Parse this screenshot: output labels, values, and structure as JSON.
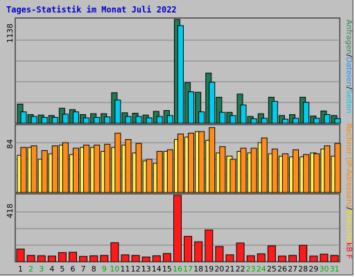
{
  "chart_data": {
    "title": "Tages-Statistik im Monat Juli 2022",
    "type": "bar",
    "categories": [
      "1",
      "2",
      "3",
      "4",
      "5",
      "6",
      "7",
      "8",
      "9",
      "10",
      "11",
      "12",
      "13",
      "14",
      "15",
      "16",
      "17",
      "18",
      "19",
      "20",
      "21",
      "22",
      "23",
      "24",
      "25",
      "26",
      "27",
      "28",
      "29",
      "30",
      "31"
    ],
    "weekend_days": [
      "2",
      "3",
      "9",
      "10",
      "16",
      "17",
      "23",
      "24",
      "30",
      "31"
    ],
    "panels": [
      {
        "ymax_label": "1138",
        "ylim": [
          0,
          1138
        ],
        "right_label": [
          {
            "text": "Anfragen",
            "color": "#2e8b57"
          },
          {
            "text": "/",
            "color": "#000000"
          },
          {
            "text": "Dateien",
            "color": "#1e90ff"
          },
          {
            "text": "/",
            "color": "#000000"
          },
          {
            "text": "Seiten",
            "color": "#00bfff"
          }
        ],
        "series": [
          {
            "name": "Anfragen",
            "color": "#1f7a56",
            "values": [
              210,
              95,
              90,
              85,
              165,
              150,
              95,
              105,
              105,
              335,
              115,
              110,
              90,
              130,
              140,
              1138,
              445,
              340,
              550,
              285,
              120,
              320,
              75,
              105,
              285,
              85,
              95,
              285,
              80,
              135,
              85
            ]
          },
          {
            "name": "Dateien",
            "color": "#00ccee",
            "values": [
              125,
              75,
              65,
              65,
              100,
              125,
              60,
              65,
              70,
              255,
              75,
              75,
              60,
              75,
              85,
              1070,
              345,
              125,
              450,
              120,
              85,
              200,
              50,
              55,
              240,
              45,
              55,
              230,
              55,
              95,
              50
            ]
          }
        ]
      },
      {
        "ymax_label": "84",
        "ylim": [
          0,
          84
        ],
        "right_label": [
          {
            "text": "Rechner (IP-Adressen)",
            "color": "#ff8800"
          },
          {
            "text": "/",
            "color": "#000000"
          },
          {
            "text": "Besuche",
            "color": "#ffdd00"
          }
        ],
        "series": [
          {
            "name": "Besuche",
            "color": "#ffee55",
            "values": [
              47,
              57,
              42,
              49,
              60,
              48,
              57,
              57,
              52,
              57,
              60,
              50,
              40,
              37,
              52,
              67,
              70,
              77,
              66,
              50,
              46,
              52,
              50,
              63,
              49,
              46,
              45,
              45,
              50,
              55,
              46
            ]
          },
          {
            "name": "Rechner",
            "color": "#ff8c1a",
            "values": [
              57,
              59,
              53,
              59,
              63,
              56,
              60,
              60,
              61,
              75,
              67,
              62,
              42,
              52,
              54,
              74,
              75,
              77,
              82,
              58,
              42,
              56,
              56,
              69,
              55,
              49,
              54,
              48,
              49,
              59,
              62
            ]
          }
        ]
      },
      {
        "ymax_label": "418",
        "ylim": [
          0,
          418
        ],
        "right_label": [
          {
            "text": "kB F",
            "color": "#ff0000"
          }
        ],
        "series": [
          {
            "name": "kB F",
            "color": "#ff1a1a",
            "values": [
              80,
              40,
              38,
              36,
              58,
              60,
              34,
              38,
              40,
              120,
              44,
              40,
              30,
              38,
              52,
              418,
              160,
              126,
              200,
              96,
              44,
              118,
              38,
              50,
              100,
              36,
              40,
              104,
              36,
              48,
              40
            ]
          }
        ]
      }
    ],
    "colors": {
      "background": "#c0c0c0",
      "plot_background": "#c0c0c0",
      "title": "#0000cc",
      "weekday_label": "#000000",
      "weekend_label": "#00aa00"
    }
  }
}
